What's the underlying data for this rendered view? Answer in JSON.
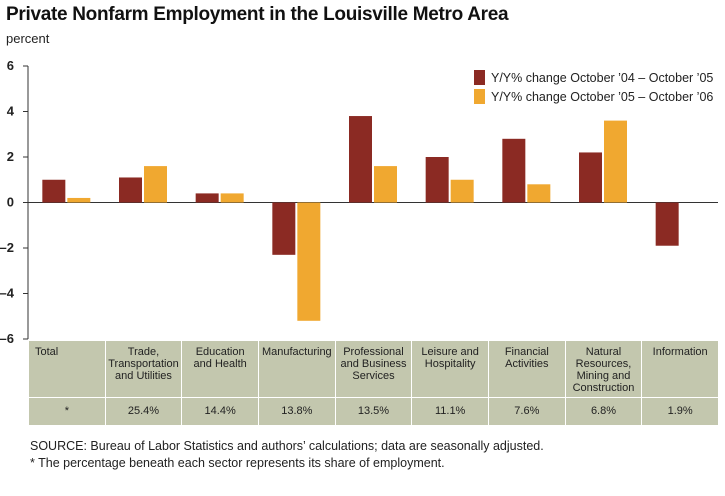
{
  "chart_data": {
    "type": "bar",
    "title": "Private Nonfarm Employment in the Louisville Metro Area",
    "ylabel": "percent",
    "ylim": [
      -6,
      6
    ],
    "yticks": [
      "6",
      "4",
      "2",
      "0",
      "–2",
      "–4",
      "–6"
    ],
    "grid": false,
    "legend_position": "top-right",
    "categories": [
      "Total",
      "Trade,\nTransportation\nand Utilities",
      "Education\nand Health",
      "Manufacturing",
      "Professional\nand Business\nServices",
      "Leisure and\nHospitality",
      "Financial\nActivities",
      "Natural\nResources,\nMining and\nConstruction",
      "Information"
    ],
    "shares": [
      "*",
      "25.4%",
      "14.4%",
      "13.8%",
      "13.5%",
      "11.1%",
      "7.6%",
      "6.8%",
      "1.9%"
    ],
    "series": [
      {
        "name": "Y/Y% change October ’04 – October ’05",
        "color": "#8b2a23",
        "values": [
          1.0,
          1.1,
          0.4,
          -2.3,
          3.8,
          2.0,
          2.8,
          2.2,
          -1.9
        ]
      },
      {
        "name": "Y/Y% change October ’05 – October ’06",
        "color": "#f0a830",
        "values": [
          0.2,
          1.6,
          0.4,
          -5.2,
          1.6,
          1.0,
          0.8,
          3.6,
          0.0
        ]
      }
    ]
  },
  "notes": {
    "source": "SOURCE: Bureau of Labor Statistics and authors’ calculations; data are seasonally adjusted.",
    "footnote": "* The percentage beneath each sector represents its share of employment."
  }
}
